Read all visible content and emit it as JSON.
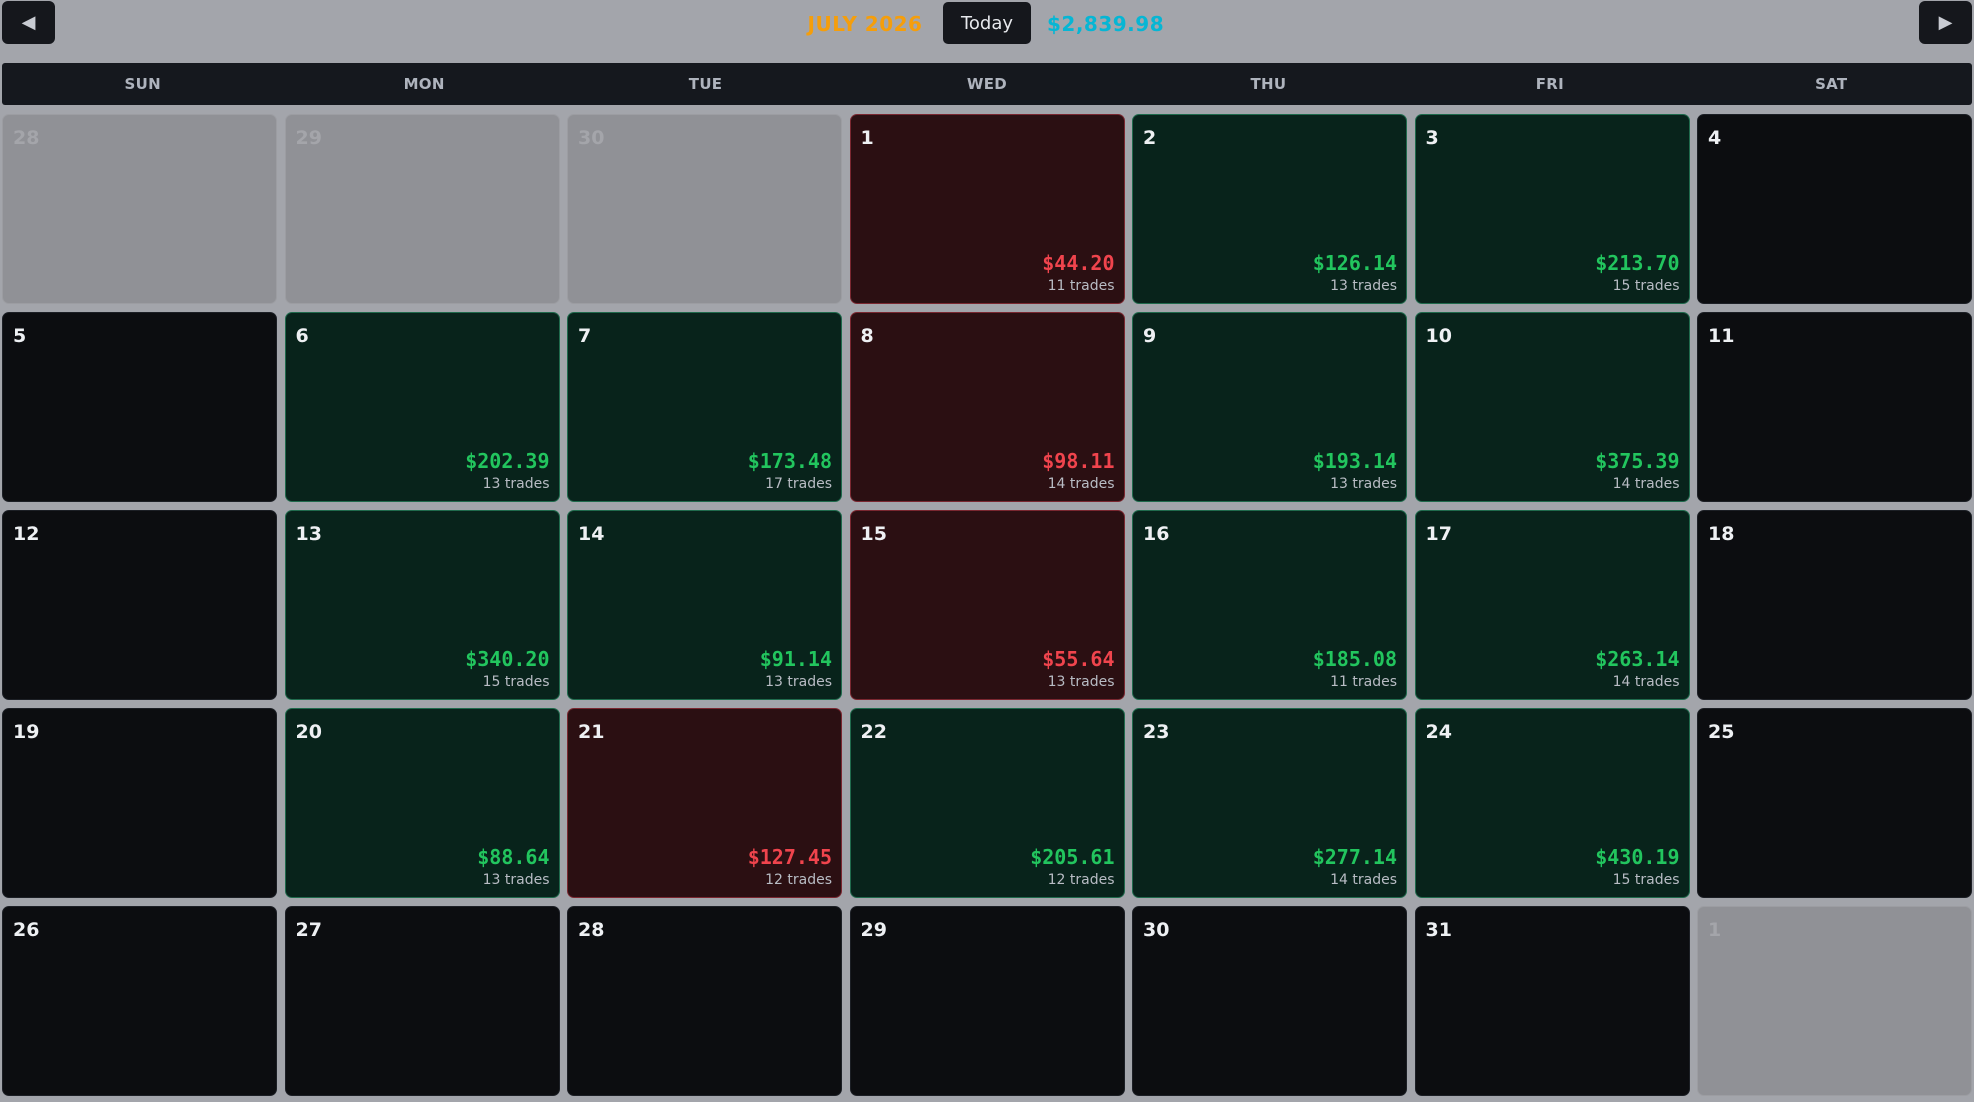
{
  "header": {
    "prev_label": "◀",
    "next_label": "▶",
    "month_title": "JULY 2026",
    "today_label": "Today",
    "month_total": "$2,839.98"
  },
  "colors": {
    "month_title": "#f59e0b",
    "month_total": "#06b6d4",
    "win_bg": "#08231b",
    "win_text": "#22c55e",
    "loss_bg": "#2b0f12",
    "loss_text": "#f0444d"
  },
  "weekdays": [
    "SUN",
    "MON",
    "TUE",
    "WED",
    "THU",
    "FRI",
    "SAT"
  ],
  "weeks": [
    [
      {
        "day": "28",
        "state": "outside"
      },
      {
        "day": "29",
        "state": "outside"
      },
      {
        "day": "30",
        "state": "outside"
      },
      {
        "day": "1",
        "state": "loss",
        "pnl": "$44.20",
        "trades": "11 trades"
      },
      {
        "day": "2",
        "state": "win",
        "pnl": "$126.14",
        "trades": "13 trades"
      },
      {
        "day": "3",
        "state": "win",
        "pnl": "$213.70",
        "trades": "15 trades"
      },
      {
        "day": "4",
        "state": "empty"
      }
    ],
    [
      {
        "day": "5",
        "state": "empty"
      },
      {
        "day": "6",
        "state": "win",
        "pnl": "$202.39",
        "trades": "13 trades"
      },
      {
        "day": "7",
        "state": "win",
        "pnl": "$173.48",
        "trades": "17 trades"
      },
      {
        "day": "8",
        "state": "loss",
        "pnl": "$98.11",
        "trades": "14 trades"
      },
      {
        "day": "9",
        "state": "win",
        "pnl": "$193.14",
        "trades": "13 trades"
      },
      {
        "day": "10",
        "state": "win",
        "pnl": "$375.39",
        "trades": "14 trades"
      },
      {
        "day": "11",
        "state": "empty"
      }
    ],
    [
      {
        "day": "12",
        "state": "empty"
      },
      {
        "day": "13",
        "state": "win",
        "pnl": "$340.20",
        "trades": "15 trades"
      },
      {
        "day": "14",
        "state": "win",
        "pnl": "$91.14",
        "trades": "13 trades"
      },
      {
        "day": "15",
        "state": "loss",
        "pnl": "$55.64",
        "trades": "13 trades"
      },
      {
        "day": "16",
        "state": "win",
        "pnl": "$185.08",
        "trades": "11 trades"
      },
      {
        "day": "17",
        "state": "win",
        "pnl": "$263.14",
        "trades": "14 trades"
      },
      {
        "day": "18",
        "state": "empty"
      }
    ],
    [
      {
        "day": "19",
        "state": "empty"
      },
      {
        "day": "20",
        "state": "win",
        "pnl": "$88.64",
        "trades": "13 trades"
      },
      {
        "day": "21",
        "state": "loss",
        "pnl": "$127.45",
        "trades": "12 trades"
      },
      {
        "day": "22",
        "state": "win",
        "pnl": "$205.61",
        "trades": "12 trades"
      },
      {
        "day": "23",
        "state": "win",
        "pnl": "$277.14",
        "trades": "14 trades"
      },
      {
        "day": "24",
        "state": "win",
        "pnl": "$430.19",
        "trades": "15 trades"
      },
      {
        "day": "25",
        "state": "empty"
      }
    ],
    [
      {
        "day": "26",
        "state": "empty"
      },
      {
        "day": "27",
        "state": "empty"
      },
      {
        "day": "28",
        "state": "empty"
      },
      {
        "day": "29",
        "state": "empty"
      },
      {
        "day": "30",
        "state": "empty"
      },
      {
        "day": "31",
        "state": "empty"
      },
      {
        "day": "1",
        "state": "outside"
      }
    ]
  ]
}
